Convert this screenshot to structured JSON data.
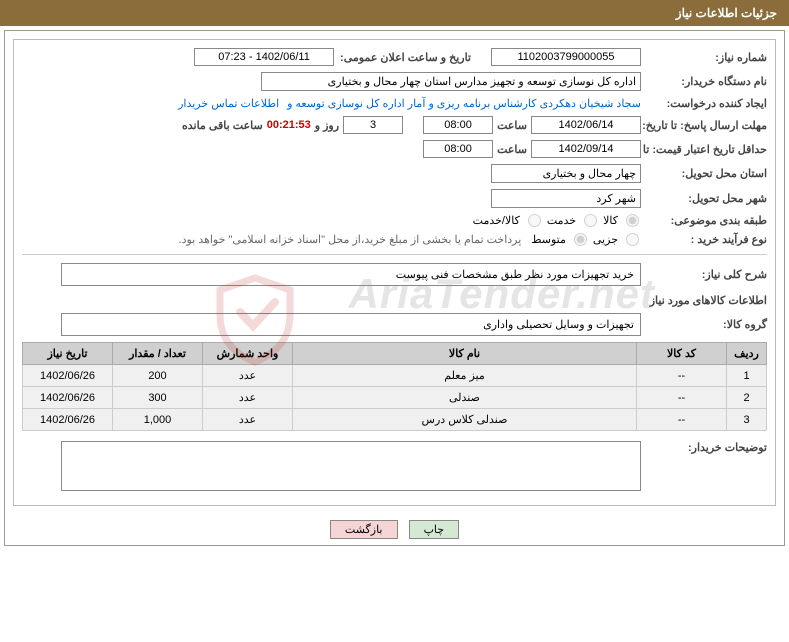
{
  "header": {
    "title": "جزئیات اطلاعات نیاز"
  },
  "fields": {
    "reqnum_label": "شماره نیاز:",
    "reqnum": "1102003799000055",
    "announce_label": "تاریخ و ساعت اعلان عمومی:",
    "announce": "1402/06/11 - 07:23",
    "buyer_label": "نام دستگاه خریدار:",
    "buyer": "اداره کل نوسازی  توسعه و تجهیز مدارس استان چهار محال و بختیاری",
    "creator_label": "ایجاد کننده درخواست:",
    "creator": "سجاد شیخیان دهکردی کارشناس برنامه ریزی و آمار اداره کل نوسازی  توسعه و",
    "contact_link": "اطلاعات تماس خریدار",
    "deadline_label": "مهلت ارسال پاسخ: تا تاریخ:",
    "deadline_date": "1402/06/14",
    "time_label": "ساعت",
    "deadline_time": "08:00",
    "days_val": "3",
    "days_label": "روز و",
    "countdown": "00:21:53",
    "remain_label": "ساعت باقی مانده",
    "validity_label": "حداقل تاریخ اعتبار قیمت: تا تاریخ:",
    "validity_date": "1402/09/14",
    "validity_time": "08:00",
    "province_label": "استان محل تحویل:",
    "province": "چهار محال و بختیاری",
    "city_label": "شهر محل تحویل:",
    "city": "شهر کرد",
    "category_label": "طبقه بندی موضوعی:",
    "cat_goods": "کالا",
    "cat_service": "خدمت",
    "cat_both": "کالا/خدمت",
    "process_label": "نوع فرآیند خرید :",
    "proc_minor": "جزیی",
    "proc_medium": "متوسط",
    "payment_note": "پرداخت تمام یا بخشی از مبلغ خرید،از محل \"اسناد خزانه اسلامی\" خواهد بود.",
    "desc_label": "شرح کلی نیاز:",
    "desc": "خرید تجهیزات مورد نظر طبق مشخصات فنی پیوست",
    "goods_info_label": "اطلاعات کالاهای مورد نیاز",
    "group_label": "گروه کالا:",
    "group": "تجهیزات و وسایل تحصیلی واداری",
    "buyer_notes_label": "توضیحات خریدار:"
  },
  "table": {
    "headers": {
      "row": "ردیف",
      "code": "کد کالا",
      "name": "نام کالا",
      "unit": "واحد شمارش",
      "qty": "تعداد / مقدار",
      "date": "تاریخ نیاز"
    },
    "rows": [
      {
        "n": "1",
        "code": "--",
        "name": "میز معلم",
        "unit": "عدد",
        "qty": "200",
        "date": "1402/06/26"
      },
      {
        "n": "2",
        "code": "--",
        "name": "صندلی",
        "unit": "عدد",
        "qty": "300",
        "date": "1402/06/26"
      },
      {
        "n": "3",
        "code": "--",
        "name": "صندلی کلاس درس",
        "unit": "عدد",
        "qty": "1,000",
        "date": "1402/06/26"
      }
    ]
  },
  "buttons": {
    "print": "چاپ",
    "back": "بازگشت"
  },
  "watermark": "AriaTender.net"
}
